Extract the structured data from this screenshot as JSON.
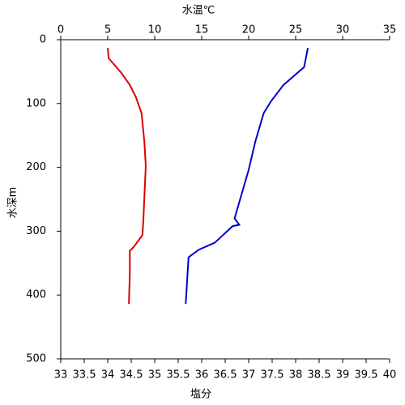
{
  "chart_data": {
    "type": "profile",
    "ylabel": "水深m",
    "xlabel": "塩分",
    "x2label": "水温℃",
    "xlabel_color": "#cc0000",
    "x2label_color": "#1a1aaa",
    "ylim": [
      0,
      500
    ],
    "yticks": [
      0,
      100,
      200,
      300,
      400,
      500
    ],
    "y_inverted": true,
    "xlim": [
      33,
      40
    ],
    "xticks": [
      33,
      33.5,
      34,
      34.5,
      35,
      35.5,
      36,
      36.5,
      37,
      37.5,
      38,
      38.5,
      39,
      39.5,
      40
    ],
    "x2lim": [
      0,
      35
    ],
    "x2ticks": [
      0,
      5,
      10,
      15,
      20,
      25,
      30,
      35
    ],
    "series": [
      {
        "color": "#dd0000",
        "axis": "x",
        "x": [
          34.0,
          34.02,
          34.29,
          34.47,
          34.6,
          34.72,
          34.78,
          34.81,
          34.79,
          34.76,
          34.74,
          34.55,
          34.47,
          34.47,
          34.45
        ],
        "y": [
          13,
          29,
          52,
          71,
          90,
          115,
          160,
          198,
          230,
          280,
          306,
          325,
          331,
          369,
          414
        ]
      },
      {
        "color": "#0000cc",
        "axis": "x2",
        "x": [
          26.3,
          25.9,
          23.7,
          22.4,
          21.6,
          20.7,
          20.0,
          18.5,
          19.0,
          18.3,
          16.4,
          14.7,
          13.6,
          13.3
        ],
        "y": [
          13,
          43,
          71,
          96,
          115,
          160,
          204,
          280,
          290,
          292,
          318,
          329,
          341,
          414
        ]
      }
    ]
  }
}
